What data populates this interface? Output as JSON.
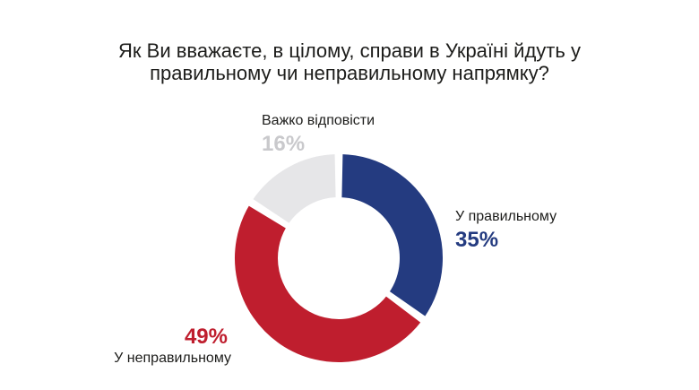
{
  "title": {
    "line1": "Як Ви вважаєте, в цілому, справи в Україні йдуть у",
    "line2": "правильному чи неправильному напрямку?"
  },
  "chart_data": {
    "type": "pie",
    "variant": "donut",
    "title": "Як Ви вважаєте, в цілому, справи в Україні йдуть у правильному чи неправильному напрямку?",
    "slices": [
      {
        "label": "У правильному",
        "value": 35,
        "value_label": "35%",
        "color": "#243b80"
      },
      {
        "label": "У неправильному",
        "value": 49,
        "value_label": "49%",
        "color": "#bf1e2e"
      },
      {
        "label": "Важко відповісти",
        "value": 16,
        "value_label": "16%",
        "color": "#e6e6e8"
      }
    ],
    "label_colors": [
      "#243b80",
      "#bf1e2e",
      "#c9c9cc"
    ],
    "legend": "none"
  }
}
